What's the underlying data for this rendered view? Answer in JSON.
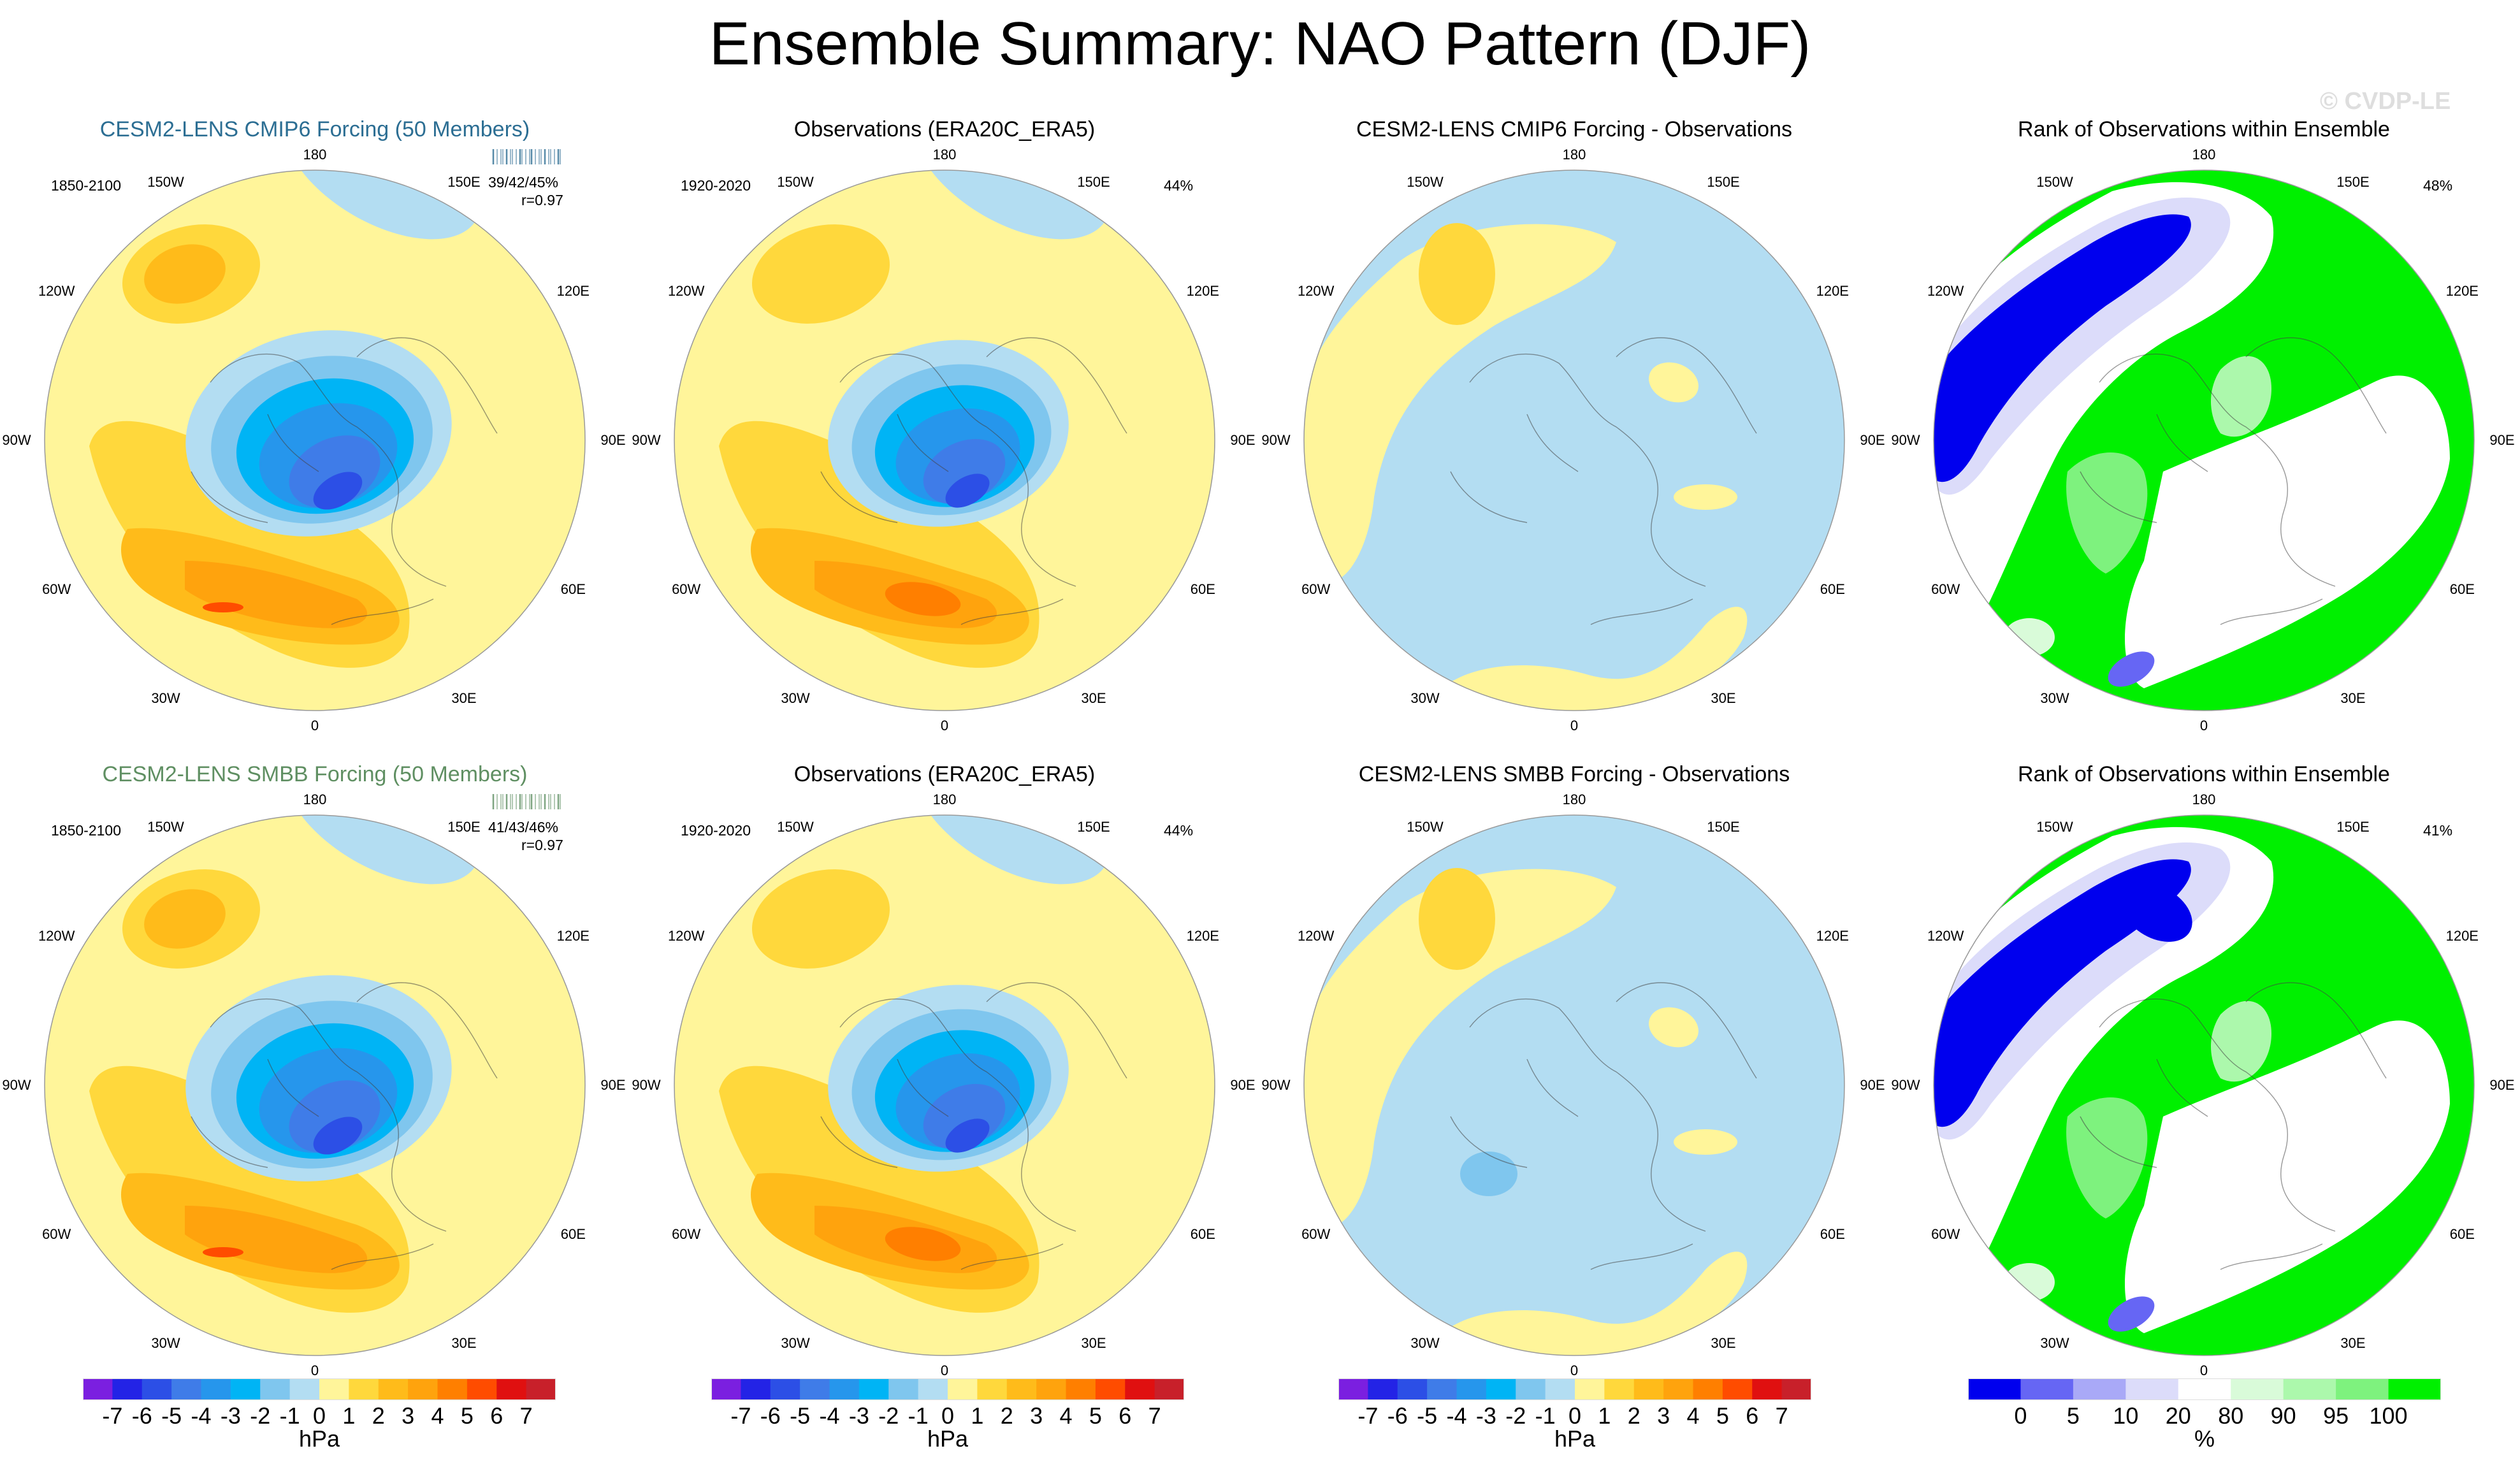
{
  "title": "Ensemble Summary: NAO Pattern (DJF)",
  "watermark": "© CVDP-LE",
  "colors": {
    "neg7": "#7b1fe0",
    "neg6": "#2323e6",
    "neg5": "#2c4fe6",
    "neg4": "#3f7ce8",
    "neg3": "#2696ec",
    "neg2": "#00b4f5",
    "neg1": "#7fc6ee",
    "neg0": "#b3ddf2",
    "pos0": "#fff59a",
    "pos1": "#ffd83c",
    "pos2": "#ffbb1a",
    "pos3": "#ffa30d",
    "pos4": "#ff7f00",
    "pos5": "#ff4c00",
    "pos6": "#e01010",
    "pos7": "#c8202a",
    "pos8": "#f5a0a0",
    "rank0": "#0000ee",
    "rank5": "#6666f4",
    "rank10": "#a9a9f7",
    "rank20": "#dcdcfa",
    "rankmid": "#ffffff",
    "rank80": "#d9fbd9",
    "rank90": "#acf8ac",
    "rank95": "#7ef27e",
    "rank100": "#00f000",
    "title_blue": "#2c6e93",
    "title_green": "#5f8f62"
  },
  "lon_labels": [
    "180",
    "150E",
    "120E",
    "90E",
    "60E",
    "30E",
    "0",
    "30W",
    "60W",
    "90W",
    "120W",
    "150W"
  ],
  "panels": [
    {
      "title": "CESM2-LENS CMIP6 Forcing (50 Members)",
      "years": "1850-2100",
      "stat": "39/42/45%",
      "corr": "r=0.97",
      "type": "ens"
    },
    {
      "title": "Observations (ERA20C_ERA5)",
      "years": "1920-2020",
      "pct": "44%",
      "type": "obs"
    },
    {
      "title": "CESM2-LENS CMIP6 Forcing - Observations",
      "type": "diff"
    },
    {
      "title": "Rank of Observations within Ensemble",
      "pct": "48%",
      "type": "rank"
    },
    {
      "title": "CESM2-LENS SMBB Forcing (50 Members)",
      "years": "1850-2100",
      "stat": "41/43/46%",
      "corr": "r=0.97",
      "type": "ens"
    },
    {
      "title": "Observations (ERA20C_ERA5)",
      "years": "1920-2020",
      "pct": "44%",
      "type": "obs"
    },
    {
      "title": "CESM2-LENS SMBB Forcing - Observations",
      "type": "diff"
    },
    {
      "title": "Rank of Observations within Ensemble",
      "pct": "41%",
      "type": "rank"
    }
  ],
  "chart_data": {
    "type": "heatmap",
    "projection": "north polar stereographic",
    "variable": "NAO pattern sea level pressure regression",
    "units": "hPa",
    "contour_levels": [
      -7,
      -6,
      -5,
      -4,
      -3,
      -2,
      -1,
      0,
      1,
      2,
      3,
      4,
      5,
      6,
      7
    ],
    "rank_levels": [
      0,
      5,
      10,
      20,
      80,
      90,
      95,
      100
    ],
    "rank_units": "%",
    "colorbars": [
      {
        "labels": [
          "-7",
          "-6",
          "-5",
          "-4",
          "-3",
          "-2",
          "-1",
          "0",
          "1",
          "2",
          "3",
          "4",
          "5",
          "6",
          "7"
        ],
        "unit": "hPa"
      },
      {
        "labels": [
          "-7",
          "-6",
          "-5",
          "-4",
          "-3",
          "-2",
          "-1",
          "0",
          "1",
          "2",
          "3",
          "4",
          "5",
          "6",
          "7"
        ],
        "unit": "hPa"
      },
      {
        "labels": [
          "-7",
          "-6",
          "-5",
          "-4",
          "-3",
          "-2",
          "-1",
          "0",
          "1",
          "2",
          "3",
          "4",
          "5",
          "6",
          "7"
        ],
        "unit": "hPa"
      },
      {
        "labels": [
          "0",
          "5",
          "10",
          "20",
          "80",
          "90",
          "95",
          "100"
        ],
        "unit": "%"
      }
    ]
  }
}
